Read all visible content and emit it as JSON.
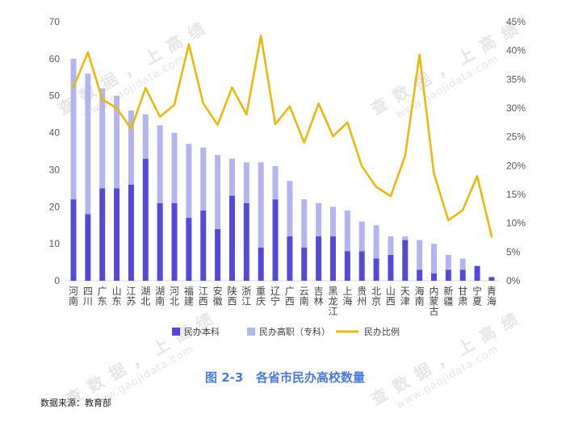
{
  "watermark": {
    "text": "查 数 据 ， 上 高 绩",
    "url": "www.gaojidata.com",
    "color": "#e6e6e6"
  },
  "source": "数据来源：教育部",
  "colors": {
    "title": "#4a7bd8",
    "baseline": "#d9d9d9"
  },
  "chart_data": {
    "type": "bar",
    "stacked": true,
    "title": "图 2-3   各省市民办高校数量",
    "categories": [
      "河南",
      "四川",
      "广东",
      "山东",
      "江苏",
      "湖北",
      "湖南",
      "河北",
      "福建",
      "江西",
      "安徽",
      "陕西",
      "浙江",
      "重庆",
      "辽宁",
      "广西",
      "云南",
      "吉林",
      "黑龙江",
      "上海",
      "贵州",
      "北京",
      "山西",
      "天津",
      "海南",
      "内蒙古",
      "新疆",
      "甘肃",
      "宁夏",
      "青海"
    ],
    "series": [
      {
        "name": "民办本科",
        "type": "bar",
        "axis": "left",
        "color": "#5449d8",
        "values": [
          22,
          18,
          25,
          25,
          26,
          33,
          21,
          21,
          17,
          19,
          14,
          23,
          21,
          9,
          22,
          12,
          9,
          12,
          12,
          8,
          8,
          6,
          7,
          11,
          3,
          2,
          3,
          3,
          4,
          1
        ]
      },
      {
        "name": "民办高职（专科）",
        "type": "bar",
        "axis": "left",
        "color": "#b4b5f0",
        "values": [
          38,
          38,
          27,
          25,
          20,
          12,
          21,
          19,
          20,
          17,
          20,
          10,
          11,
          23,
          9,
          15,
          13,
          9,
          8,
          11,
          8,
          9,
          5,
          1,
          8,
          8,
          4,
          3,
          0,
          0
        ]
      },
      {
        "name": "民办比例",
        "type": "line",
        "axis": "right",
        "unit": "%",
        "color": "#e8b90f",
        "values": [
          33.6,
          39.7,
          31.5,
          30.0,
          26.4,
          33.5,
          28.5,
          30.6,
          41.1,
          30.8,
          27.1,
          33.6,
          28.9,
          42.6,
          27.2,
          30.3,
          24.0,
          30.8,
          25.1,
          27.5,
          19.9,
          16.3,
          14.7,
          21.7,
          39.3,
          18.6,
          10.5,
          12.3,
          18.2,
          7.7
        ]
      }
    ],
    "y_left": {
      "range": [
        0,
        70
      ],
      "ticks": [
        "0",
        "10",
        "20",
        "30",
        "40",
        "50",
        "60",
        "70"
      ]
    },
    "y_right": {
      "range": [
        0,
        45
      ],
      "ticks": [
        "0%",
        "5%",
        "10%",
        "15%",
        "20%",
        "25%",
        "30%",
        "35%",
        "40%",
        "45%"
      ]
    },
    "grid": false,
    "legend": "bottom"
  }
}
